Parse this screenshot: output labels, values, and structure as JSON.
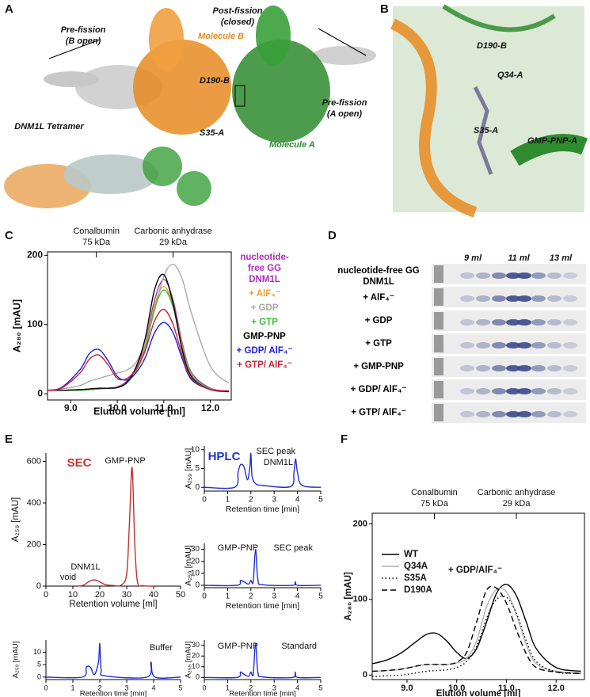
{
  "panel_letters": [
    "A",
    "B",
    "C",
    "D",
    "E",
    "F"
  ],
  "structure_panel": {
    "pre_fission_b": [
      "Pre-fission",
      "(B open)"
    ],
    "post_fission": [
      "Post-fission",
      "(closed)"
    ],
    "molecule_b": "Molecule B",
    "d190b": "D190-B",
    "s35a": "S35-A",
    "molecule_a": "Molecule A",
    "pre_fission_a": [
      "Pre-fission",
      "(A open)"
    ],
    "tetramer": "DNM1L Tetramer"
  },
  "closeup_panel": {
    "d190b": "D190-B",
    "q34a": "Q34-A",
    "s35a": "S35-A",
    "ligand": "GMP-PNP-A"
  },
  "gel_panel": {
    "volumes": [
      "9 ml",
      "11 ml",
      "13 ml"
    ],
    "lanes": [
      "nucleotide-free GG DNM1L",
      "+ AlF₄⁻",
      "+ GDP",
      "+ GTP",
      "+ GMP-PNP",
      "+ GDP/ AlF₄⁻",
      "+ GTP/ AlF₄⁻"
    ]
  },
  "chart_data": [
    {
      "type": "line",
      "xlabel": "Elution volume [ml]",
      "ylabel": "A₂₈₀ [mAU]",
      "xlim": [
        8.5,
        12.45
      ],
      "ylim": [
        -9,
        205
      ],
      "xticks": [
        {
          "value": 9,
          "label": "9.0"
        },
        {
          "value": 10,
          "label": "10.0"
        },
        {
          "value": 11,
          "label": "11.0"
        },
        {
          "value": 12,
          "label": "12.0"
        }
      ],
      "yticks": [
        0,
        100,
        200
      ],
      "markers": [
        {
          "label": "Conalbumin",
          "sublabel": "75 kDa",
          "x": 9.55
        },
        {
          "label": "Carbonic anhydrase",
          "sublabel": "29 kDa",
          "x": 11.2
        }
      ],
      "x": [
        8.5,
        8.8,
        9.2,
        9.4,
        9.6,
        9.8,
        10.0,
        10.2,
        10.4,
        10.6,
        10.8,
        11.0,
        11.2,
        11.4,
        11.6,
        12.0,
        12.4
      ],
      "series": [
        {
          "name": "nucleotide-free GG DNM1L",
          "color": "#b02cc0",
          "values": [
            5,
            5,
            6,
            6,
            7,
            8,
            10,
            18,
            38,
            72,
            135,
            165,
            135,
            72,
            30,
            8,
            4
          ]
        },
        {
          "name": "+ AlF₄⁻",
          "color": "#f0a030",
          "values": [
            5,
            5,
            6,
            6,
            7,
            8,
            9,
            16,
            34,
            68,
            128,
            155,
            128,
            68,
            28,
            7,
            4
          ]
        },
        {
          "name": "+ GDP",
          "color": "#a8a8a8",
          "values": [
            5,
            7,
            12,
            18,
            22,
            26,
            30,
            34,
            45,
            72,
            120,
            170,
            187,
            165,
            115,
            40,
            15
          ]
        },
        {
          "name": "+ GTP",
          "color": "#38c038",
          "values": [
            5,
            5,
            5,
            6,
            7,
            8,
            9,
            15,
            32,
            65,
            122,
            150,
            125,
            66,
            27,
            7,
            4
          ]
        },
        {
          "name": "GMP-PNP",
          "color": "#000000",
          "values": [
            5,
            5,
            6,
            7,
            8,
            8,
            9,
            16,
            38,
            80,
            150,
            172,
            130,
            62,
            24,
            6,
            3
          ]
        },
        {
          "name": "+ GDP/ AlF₄⁻",
          "color": "#2020e0",
          "values": [
            5,
            9,
            35,
            58,
            64,
            48,
            25,
            20,
            30,
            52,
            88,
            103,
            88,
            50,
            20,
            6,
            4
          ]
        },
        {
          "name": "+ GTP/ AlF₄⁻",
          "color": "#d0203a",
          "values": [
            5,
            8,
            30,
            50,
            56,
            42,
            22,
            22,
            35,
            62,
            105,
            122,
            100,
            55,
            22,
            6,
            4
          ]
        }
      ]
    },
    {
      "type": "line",
      "title": "SEC",
      "title_color": "#d03030",
      "xlabel": "Retention volume [ml]",
      "ylabel": "A₂₅₉ [mAU]",
      "xlim": [
        0,
        50
      ],
      "ylim": [
        0,
        640
      ],
      "xticks": [
        0,
        10,
        20,
        30,
        40,
        50
      ],
      "yticks": [
        0,
        200,
        400,
        600
      ],
      "annotations": [
        "GMP-PNP",
        "void",
        "DNM1L"
      ],
      "x": [
        12,
        14,
        16,
        18,
        20,
        22,
        25,
        28,
        30,
        31,
        32,
        33,
        34,
        36,
        40
      ],
      "series": [
        {
          "color": "#c03030",
          "values": [
            0,
            5,
            22,
            30,
            20,
            8,
            3,
            5,
            60,
            300,
            570,
            200,
            20,
            2,
            0
          ]
        }
      ]
    },
    {
      "type": "line",
      "title": "HPLC",
      "title_color": "#2030d0",
      "xlabel": "Retention time [min]",
      "ylabel": "A₂₅₉ [mAU]",
      "xlim": [
        0,
        5
      ],
      "ylim": [
        -1,
        11
      ],
      "xticks": [
        0,
        1,
        2,
        3,
        4,
        5
      ],
      "yticks": [
        0,
        5,
        10
      ],
      "annotations": [
        "SEC peak",
        "DNM1L"
      ],
      "x": [
        0,
        1.3,
        1.45,
        1.55,
        1.7,
        1.85,
        1.95,
        2.0,
        2.05,
        2.2,
        2.5,
        3.7,
        3.85,
        3.92,
        4.0,
        4.2,
        5
      ],
      "series": [
        {
          "color": "#2030d0",
          "values": [
            0,
            0,
            4,
            6,
            5.5,
            2,
            5,
            9,
            3,
            1,
            0.5,
            0.2,
            4,
            7.5,
            4,
            0.5,
            0
          ]
        }
      ]
    },
    {
      "type": "line",
      "xlabel": "Retention time [min]",
      "ylabel": "A₂₅₉ [mAU]",
      "xlim": [
        0,
        5
      ],
      "ylim": [
        -2,
        35
      ],
      "xticks": [
        0,
        1,
        2,
        3,
        4,
        5
      ],
      "yticks": [
        0,
        10,
        20,
        30
      ],
      "annotations": [
        "GMP-PNP",
        "SEC peak"
      ],
      "x": [
        0,
        1.4,
        1.55,
        1.7,
        1.9,
        2.0,
        2.1,
        2.2,
        2.3,
        2.5,
        3.8,
        3.9,
        4.0,
        5
      ],
      "series": [
        {
          "color": "#2030d0",
          "values": [
            0,
            0,
            4,
            3,
            1,
            4,
            3,
            30,
            5,
            0.5,
            0,
            3,
            0,
            0
          ]
        }
      ]
    },
    {
      "type": "line",
      "xlabel": "Retention time [min]",
      "ylabel": "A₂₅₉ [mAU]",
      "xlim": [
        0,
        5
      ],
      "ylim": [
        -1,
        15
      ],
      "xticks": [
        0,
        1,
        2,
        3,
        4,
        5
      ],
      "yticks": [
        0,
        5,
        10
      ],
      "annotations": [
        "Buffer"
      ],
      "x": [
        0,
        1.35,
        1.5,
        1.65,
        1.8,
        1.95,
        2.0,
        2.05,
        2.2,
        3.75,
        3.9,
        4.05,
        5
      ],
      "series": [
        {
          "color": "#2030d0",
          "values": [
            0,
            0,
            4,
            4,
            1,
            6,
            13.5,
            3,
            0.5,
            0,
            6,
            0,
            0
          ]
        }
      ]
    },
    {
      "type": "line",
      "xlabel": "Retention time [min]",
      "ylabel": "A₂₅₉ [mAU]",
      "xlim": [
        0,
        5
      ],
      "ylim": [
        -2,
        35
      ],
      "xticks": [
        0,
        1,
        2,
        3,
        4,
        5
      ],
      "yticks": [
        0,
        10,
        20,
        30
      ],
      "annotations": [
        "GMP-PNP",
        "Standard"
      ],
      "x": [
        0,
        1.4,
        1.55,
        1.7,
        1.9,
        2.0,
        2.1,
        2.2,
        2.3,
        2.5,
        3.8,
        3.9,
        4.0,
        5
      ],
      "series": [
        {
          "color": "#2030d0",
          "values": [
            0,
            0,
            5,
            3,
            1,
            5,
            3,
            32,
            5,
            0.5,
            0,
            5,
            0,
            0
          ]
        }
      ]
    },
    {
      "type": "line",
      "xlabel": "Elution volume [ml]",
      "ylabel": "A₂₈₀ [mAU]",
      "xlim": [
        8.3,
        12.57
      ],
      "ylim": [
        -6,
        214
      ],
      "xticks": [
        {
          "value": 9,
          "label": "9.0"
        },
        {
          "value": 10,
          "label": "10.0"
        },
        {
          "value": 11,
          "label": "11.0"
        },
        {
          "value": 12,
          "label": "12.0"
        }
      ],
      "yticks": [
        0,
        100,
        200
      ],
      "markers": [
        {
          "label": "Conalbumin",
          "sublabel": "75 kDa",
          "x": 9.55
        },
        {
          "label": "Carbonic anhydrase",
          "sublabel": "29 kDa",
          "x": 11.2
        }
      ],
      "annotations": [
        "+ GDP/AlF₄⁻"
      ],
      "x": [
        8.3,
        8.6,
        8.9,
        9.2,
        9.4,
        9.6,
        9.8,
        10.0,
        10.2,
        10.4,
        10.6,
        10.8,
        11.0,
        11.2,
        11.4,
        11.6,
        12.0,
        12.5
      ],
      "series": [
        {
          "name": "WT",
          "color": "#000000",
          "dash": "solid",
          "values": [
            15,
            20,
            30,
            45,
            54,
            55,
            45,
            30,
            22,
            35,
            70,
            108,
            120,
            105,
            70,
            35,
            10,
            5
          ]
        },
        {
          "name": "Q34A",
          "color": "#b0b0b0",
          "dash": "solid",
          "values": [
            5,
            6,
            8,
            12,
            14,
            14,
            14,
            16,
            22,
            45,
            90,
            113,
            110,
            80,
            40,
            15,
            5,
            3
          ]
        },
        {
          "name": "S35A",
          "color": "#000000",
          "dash": "dotted",
          "values": [
            -2,
            -1,
            0,
            3,
            5,
            6,
            7,
            10,
            18,
            38,
            75,
            100,
            103,
            82,
            45,
            18,
            4,
            2
          ]
        },
        {
          "name": "D190A",
          "color": "#000000",
          "dash": "dashed",
          "values": [
            5,
            6,
            8,
            12,
            14,
            14,
            14,
            17,
            30,
            70,
            112,
            115,
            95,
            60,
            28,
            10,
            4,
            2
          ]
        }
      ]
    }
  ]
}
